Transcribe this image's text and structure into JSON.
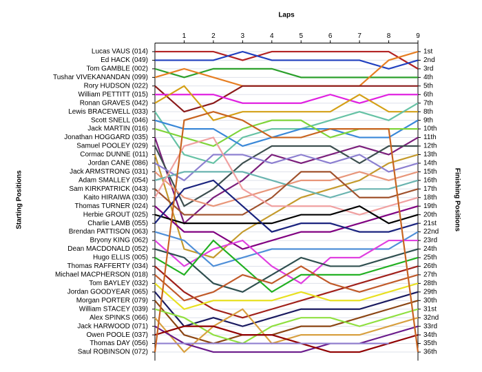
{
  "chart_data": {
    "type": "line",
    "title": "Laps",
    "ylabel": "Starting Positions",
    "y2label": "Finishing Positions",
    "x": [
      0,
      1,
      2,
      3,
      4,
      5,
      6,
      7,
      8,
      9
    ],
    "xlim": [
      0,
      9
    ],
    "xticks": [
      1,
      2,
      3,
      4,
      5,
      6,
      7,
      8,
      9
    ],
    "ylim": [
      0,
      37
    ],
    "y_inverted": true,
    "grid": true,
    "yticks": [
      1,
      2,
      3,
      4,
      5,
      6,
      7,
      8,
      9,
      10,
      11,
      12,
      13,
      14,
      15,
      16,
      17,
      18,
      19,
      20,
      21,
      22,
      23,
      24,
      25,
      26,
      27,
      28,
      29,
      30,
      31,
      32,
      33,
      34,
      35,
      36
    ],
    "y2lim": [
      0,
      37
    ],
    "y2ticks": [
      {
        "value": 1,
        "label": "1st"
      },
      {
        "value": 2,
        "label": "2nd"
      },
      {
        "value": 3,
        "label": "3rd"
      },
      {
        "value": 4,
        "label": "4th"
      },
      {
        "value": 5,
        "label": "5th"
      },
      {
        "value": 6,
        "label": "6th"
      },
      {
        "value": 7,
        "label": "7th"
      },
      {
        "value": 8,
        "label": "8th"
      },
      {
        "value": 9,
        "label": "9th"
      },
      {
        "value": 10,
        "label": "10th"
      },
      {
        "value": 11,
        "label": "11th"
      },
      {
        "value": 12,
        "label": "12th"
      },
      {
        "value": 13,
        "label": "13th"
      },
      {
        "value": 14,
        "label": "14th"
      },
      {
        "value": 15,
        "label": "15th"
      },
      {
        "value": 16,
        "label": "16th"
      },
      {
        "value": 17,
        "label": "17th"
      },
      {
        "value": 18,
        "label": "18th"
      },
      {
        "value": 19,
        "label": "19th"
      },
      {
        "value": 20,
        "label": "20th"
      },
      {
        "value": 21,
        "label": "21st"
      },
      {
        "value": 22,
        "label": "22nd"
      },
      {
        "value": 23,
        "label": "23rd"
      },
      {
        "value": 24,
        "label": "24th"
      },
      {
        "value": 25,
        "label": "25th"
      },
      {
        "value": 26,
        "label": "26th"
      },
      {
        "value": 27,
        "label": "27th"
      },
      {
        "value": 28,
        "label": "28th"
      },
      {
        "value": 29,
        "label": "29th"
      },
      {
        "value": 30,
        "label": "30th"
      },
      {
        "value": 31,
        "label": "31st"
      },
      {
        "value": 32,
        "label": "32nd"
      },
      {
        "value": 33,
        "label": "33rd"
      },
      {
        "value": 34,
        "label": "34th"
      },
      {
        "value": 35,
        "label": "35th"
      },
      {
        "value": 36,
        "label": "36th"
      }
    ],
    "series": [
      {
        "name": "Lucas VAUS (014)",
        "color": "#b22222",
        "values": [
          1,
          1,
          1,
          2,
          1,
          1,
          1,
          1,
          1,
          3
        ]
      },
      {
        "name": "Ed HACK (049)",
        "color": "#1f3fbf",
        "values": [
          2,
          2,
          2,
          1,
          2,
          2,
          2,
          2,
          3,
          2
        ]
      },
      {
        "name": "Tom GAMBLE (002)",
        "color": "#2ca02c",
        "values": [
          3,
          4,
          3,
          3,
          3,
          4,
          4,
          4,
          4,
          4
        ]
      },
      {
        "name": "Tushar VIVEKANANDAN (099)",
        "color": "#e67e22",
        "values": [
          4,
          3,
          4,
          5,
          5,
          5,
          5,
          5,
          2,
          1
        ]
      },
      {
        "name": "Rory HUDSON (022)",
        "color": "#8b1a1a",
        "values": [
          5,
          8,
          7,
          5,
          5,
          5,
          5,
          5,
          5,
          5
        ]
      },
      {
        "name": "William PETTITT (015)",
        "color": "#e020e0",
        "values": [
          6,
          6,
          6,
          7,
          7,
          7,
          6,
          7,
          6,
          6
        ]
      },
      {
        "name": "Ronan GRAVES (042)",
        "color": "#d4a017",
        "values": [
          7,
          5,
          9,
          8,
          8,
          8,
          8,
          6,
          8,
          8
        ]
      },
      {
        "name": "Lewis BRACEWELL (033)",
        "color": "#66c2a5",
        "values": [
          8,
          13,
          14,
          11,
          10,
          10,
          9,
          8,
          9,
          7
        ]
      },
      {
        "name": "Scott SNELL (046)",
        "color": "#3a88d8",
        "values": [
          9,
          10,
          10,
          12,
          11,
          10,
          10,
          11,
          11,
          9
        ]
      },
      {
        "name": "Jack MARTIN (016)",
        "color": "#7fd43a",
        "values": [
          10,
          11,
          12,
          10,
          9,
          9,
          11,
          10,
          10,
          10
        ]
      },
      {
        "name": "Jonathan HOGGARD (035)",
        "color": "#7b1f7b",
        "values": [
          11,
          21,
          18,
          16,
          13,
          14,
          13,
          12,
          13,
          11
        ]
      },
      {
        "name": "Samuel POOLEY (029)",
        "color": "#3d4f4f",
        "values": [
          12,
          19,
          17,
          14,
          12,
          12,
          12,
          14,
          12,
          12
        ]
      },
      {
        "name": "Cormac DUNNE (011)",
        "color": "#c49a2c",
        "values": [
          13,
          24,
          25,
          22,
          20,
          18,
          17,
          16,
          14,
          13
        ]
      },
      {
        "name": "Jordan CANE (086)",
        "color": "#8c7fd0",
        "values": [
          14,
          16,
          13,
          13,
          14,
          13,
          14,
          13,
          15,
          14
        ]
      },
      {
        "name": "Jack ARMSTRONG (031)",
        "color": "#e8967a",
        "values": [
          15,
          18,
          19,
          18,
          17,
          16,
          16,
          15,
          16,
          15
        ]
      },
      {
        "name": "Adam SMALLEY (054)",
        "color": "#6ab4b0",
        "values": [
          16,
          15,
          15,
          15,
          16,
          17,
          18,
          17,
          17,
          16
        ]
      },
      {
        "name": "Sam KIRKPATRICK (043)",
        "color": "#a0522d",
        "values": [
          17,
          20,
          20,
          20,
          18,
          15,
          15,
          18,
          18,
          17
        ]
      },
      {
        "name": "Kaito HIRAIWA (030)",
        "color": "#f0a0a0",
        "values": [
          18,
          12,
          11,
          17,
          19,
          19,
          19,
          20,
          19,
          18
        ]
      },
      {
        "name": "Thomas TURNER (024)",
        "color": "#800080",
        "values": [
          19,
          22,
          22,
          24,
          23,
          22,
          22,
          21,
          20,
          19
        ]
      },
      {
        "name": "Herbie GROUT (025)",
        "color": "#000000",
        "values": [
          20,
          21,
          21,
          21,
          21,
          20,
          20,
          19,
          21,
          20
        ]
      },
      {
        "name": "Charlie LAMB (055)",
        "color": "#1a237e",
        "values": [
          21,
          17,
          16,
          19,
          22,
          21,
          21,
          22,
          22,
          21
        ]
      },
      {
        "name": "Brendan PATTISON (063)",
        "color": "#4f8fd8",
        "values": [
          22,
          23,
          26,
          25,
          24,
          24,
          24,
          24,
          24,
          22
        ]
      },
      {
        "name": "Bryony KING (062)",
        "color": "#e040e0",
        "values": [
          23,
          26,
          24,
          23,
          26,
          28,
          25,
          25,
          23,
          23
        ]
      },
      {
        "name": "Dean MACDONALD (052)",
        "color": "#2f4f4f",
        "values": [
          24,
          25,
          28,
          29,
          27,
          25,
          26,
          26,
          25,
          24
        ]
      },
      {
        "name": "Hugo ELLIS (005)",
        "color": "#22b022",
        "values": [
          25,
          27,
          23,
          26,
          29,
          27,
          27,
          27,
          26,
          25
        ]
      },
      {
        "name": "Thomas RAFFERTY (034)",
        "color": "#a0201a",
        "values": [
          26,
          29,
          31,
          32,
          31,
          30,
          29,
          28,
          27,
          26
        ]
      },
      {
        "name": "Michael MACPHERSON (018)",
        "color": "#c05a2a",
        "values": [
          27,
          30,
          29,
          27,
          28,
          26,
          28,
          29,
          28,
          27
        ]
      },
      {
        "name": "Tom BAYLEY (032)",
        "color": "#e8e020",
        "values": [
          28,
          31,
          30,
          30,
          30,
          29,
          30,
          30,
          29,
          28
        ]
      },
      {
        "name": "Jordan GOODYEAR (065)",
        "color": "#1a1a60",
        "values": [
          29,
          33,
          32,
          33,
          32,
          31,
          31,
          31,
          30,
          29
        ]
      },
      {
        "name": "Morgan PORTER (079)",
        "color": "#8b4513",
        "values": [
          30,
          34,
          35,
          34,
          34,
          33,
          33,
          32,
          31,
          30
        ]
      },
      {
        "name": "William STACEY (039)",
        "color": "#90e040",
        "values": [
          31,
          32,
          34,
          35,
          33,
          32,
          32,
          33,
          32,
          31
        ]
      },
      {
        "name": "Alex SPINKS (066)",
        "color": "#d8a040",
        "values": [
          32,
          36,
          33,
          31,
          35,
          34,
          34,
          34,
          33,
          32
        ]
      },
      {
        "name": "Jack HARWOOD (071)",
        "color": "#6a1a8a",
        "values": [
          33,
          35,
          36,
          36,
          36,
          36,
          35,
          35,
          34,
          33
        ]
      },
      {
        "name": "Owen POOLE (037)",
        "color": "#900000",
        "values": [
          34,
          33,
          33,
          34,
          34,
          35,
          36,
          36,
          35,
          34
        ]
      },
      {
        "name": "Thomas DAY (056)",
        "color": "#9080d0",
        "values": [
          35,
          35,
          35,
          35,
          35,
          35,
          35,
          35,
          35,
          null
        ]
      },
      {
        "name": "Saul ROBINSON (072)",
        "color": "#c86420",
        "values": [
          36,
          9,
          8,
          9,
          11,
          11,
          10,
          10,
          10,
          36
        ]
      }
    ]
  }
}
